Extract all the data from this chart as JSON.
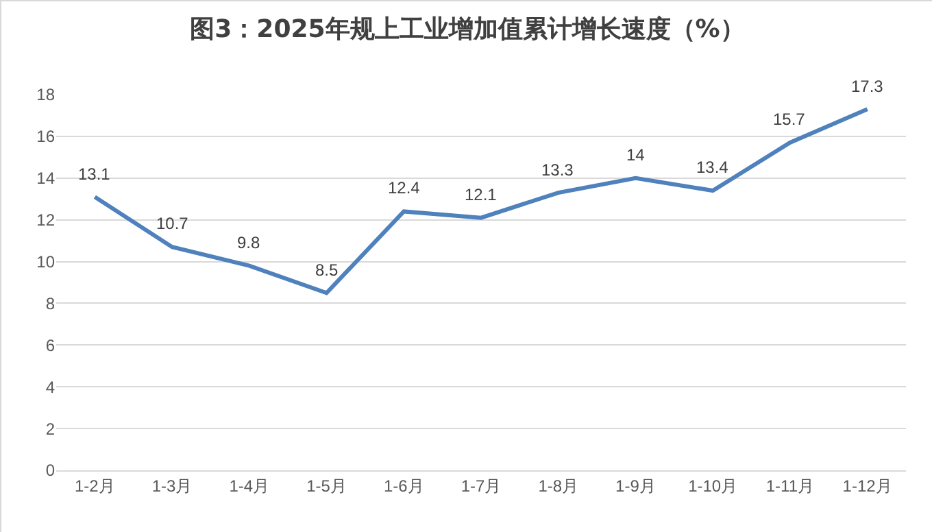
{
  "chart_data": {
    "type": "line",
    "title": "图3：2025年规上工业增加值累计增长速度（%）",
    "categories": [
      "1-2月",
      "1-3月",
      "1-4月",
      "1-5月",
      "1-6月",
      "1-7月",
      "1-8月",
      "1-9月",
      "1-10月",
      "1-11月",
      "1-12月"
    ],
    "series": [
      {
        "color": "#4f81bd",
        "values": [
          13.1,
          10.7,
          9.8,
          8.5,
          12.4,
          12.1,
          13.3,
          14,
          13.4,
          15.7,
          17.3
        ]
      }
    ],
    "ylim": [
      0,
      18
    ],
    "yticks": [
      0,
      2,
      4,
      6,
      8,
      10,
      12,
      14,
      16,
      18
    ],
    "grid": "y",
    "marker": "none",
    "line_style": "solid",
    "data_labels": true
  }
}
